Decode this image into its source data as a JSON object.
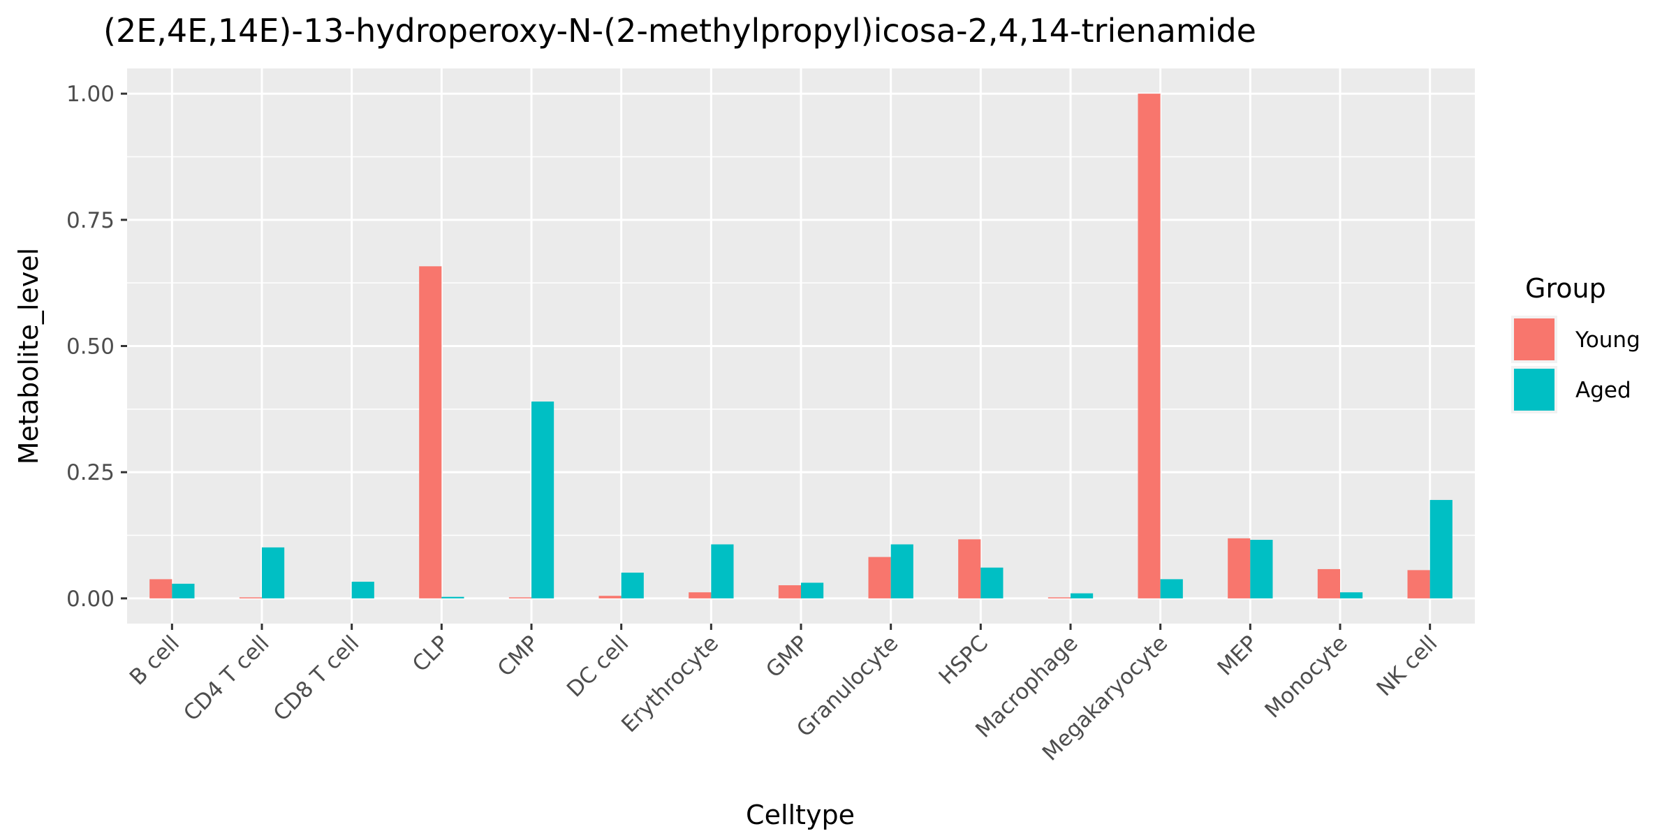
{
  "chart_data": {
    "type": "bar",
    "title": "(2E,4E,14E)-13-hydroperoxy-N-(2-methylpropyl)icosa-2,4,14-trienamide",
    "xlabel": "Celltype",
    "ylabel": "Metabolite_level",
    "ylim": [
      -0.05,
      1.05
    ],
    "yticks": [
      0.0,
      0.25,
      0.5,
      0.75,
      1.0
    ],
    "ytick_labels": [
      "0.00",
      "0.25",
      "0.50",
      "0.75",
      "1.00"
    ],
    "categories": [
      "B cell",
      "CD4 T cell",
      "CD8 T cell",
      "CLP",
      "CMP",
      "DC cell",
      "Erythrocyte",
      "GMP",
      "Granulocyte",
      "HSPC",
      "Macrophage",
      "Megakaryocyte",
      "MEP",
      "Monocyte",
      "NK cell"
    ],
    "legend": {
      "title": "Group",
      "position": "right"
    },
    "grid": true,
    "series": [
      {
        "name": "Young",
        "color": "#F8766D",
        "values": [
          0.038,
          0.002,
          0.0,
          0.658,
          0.002,
          0.005,
          0.012,
          0.026,
          0.082,
          0.117,
          0.002,
          1.0,
          0.119,
          0.058,
          0.056
        ]
      },
      {
        "name": "Aged",
        "color": "#00BFC4",
        "values": [
          0.029,
          0.101,
          0.033,
          0.003,
          0.39,
          0.051,
          0.107,
          0.031,
          0.107,
          0.061,
          0.01,
          0.038,
          0.116,
          0.012,
          0.195
        ]
      }
    ]
  }
}
